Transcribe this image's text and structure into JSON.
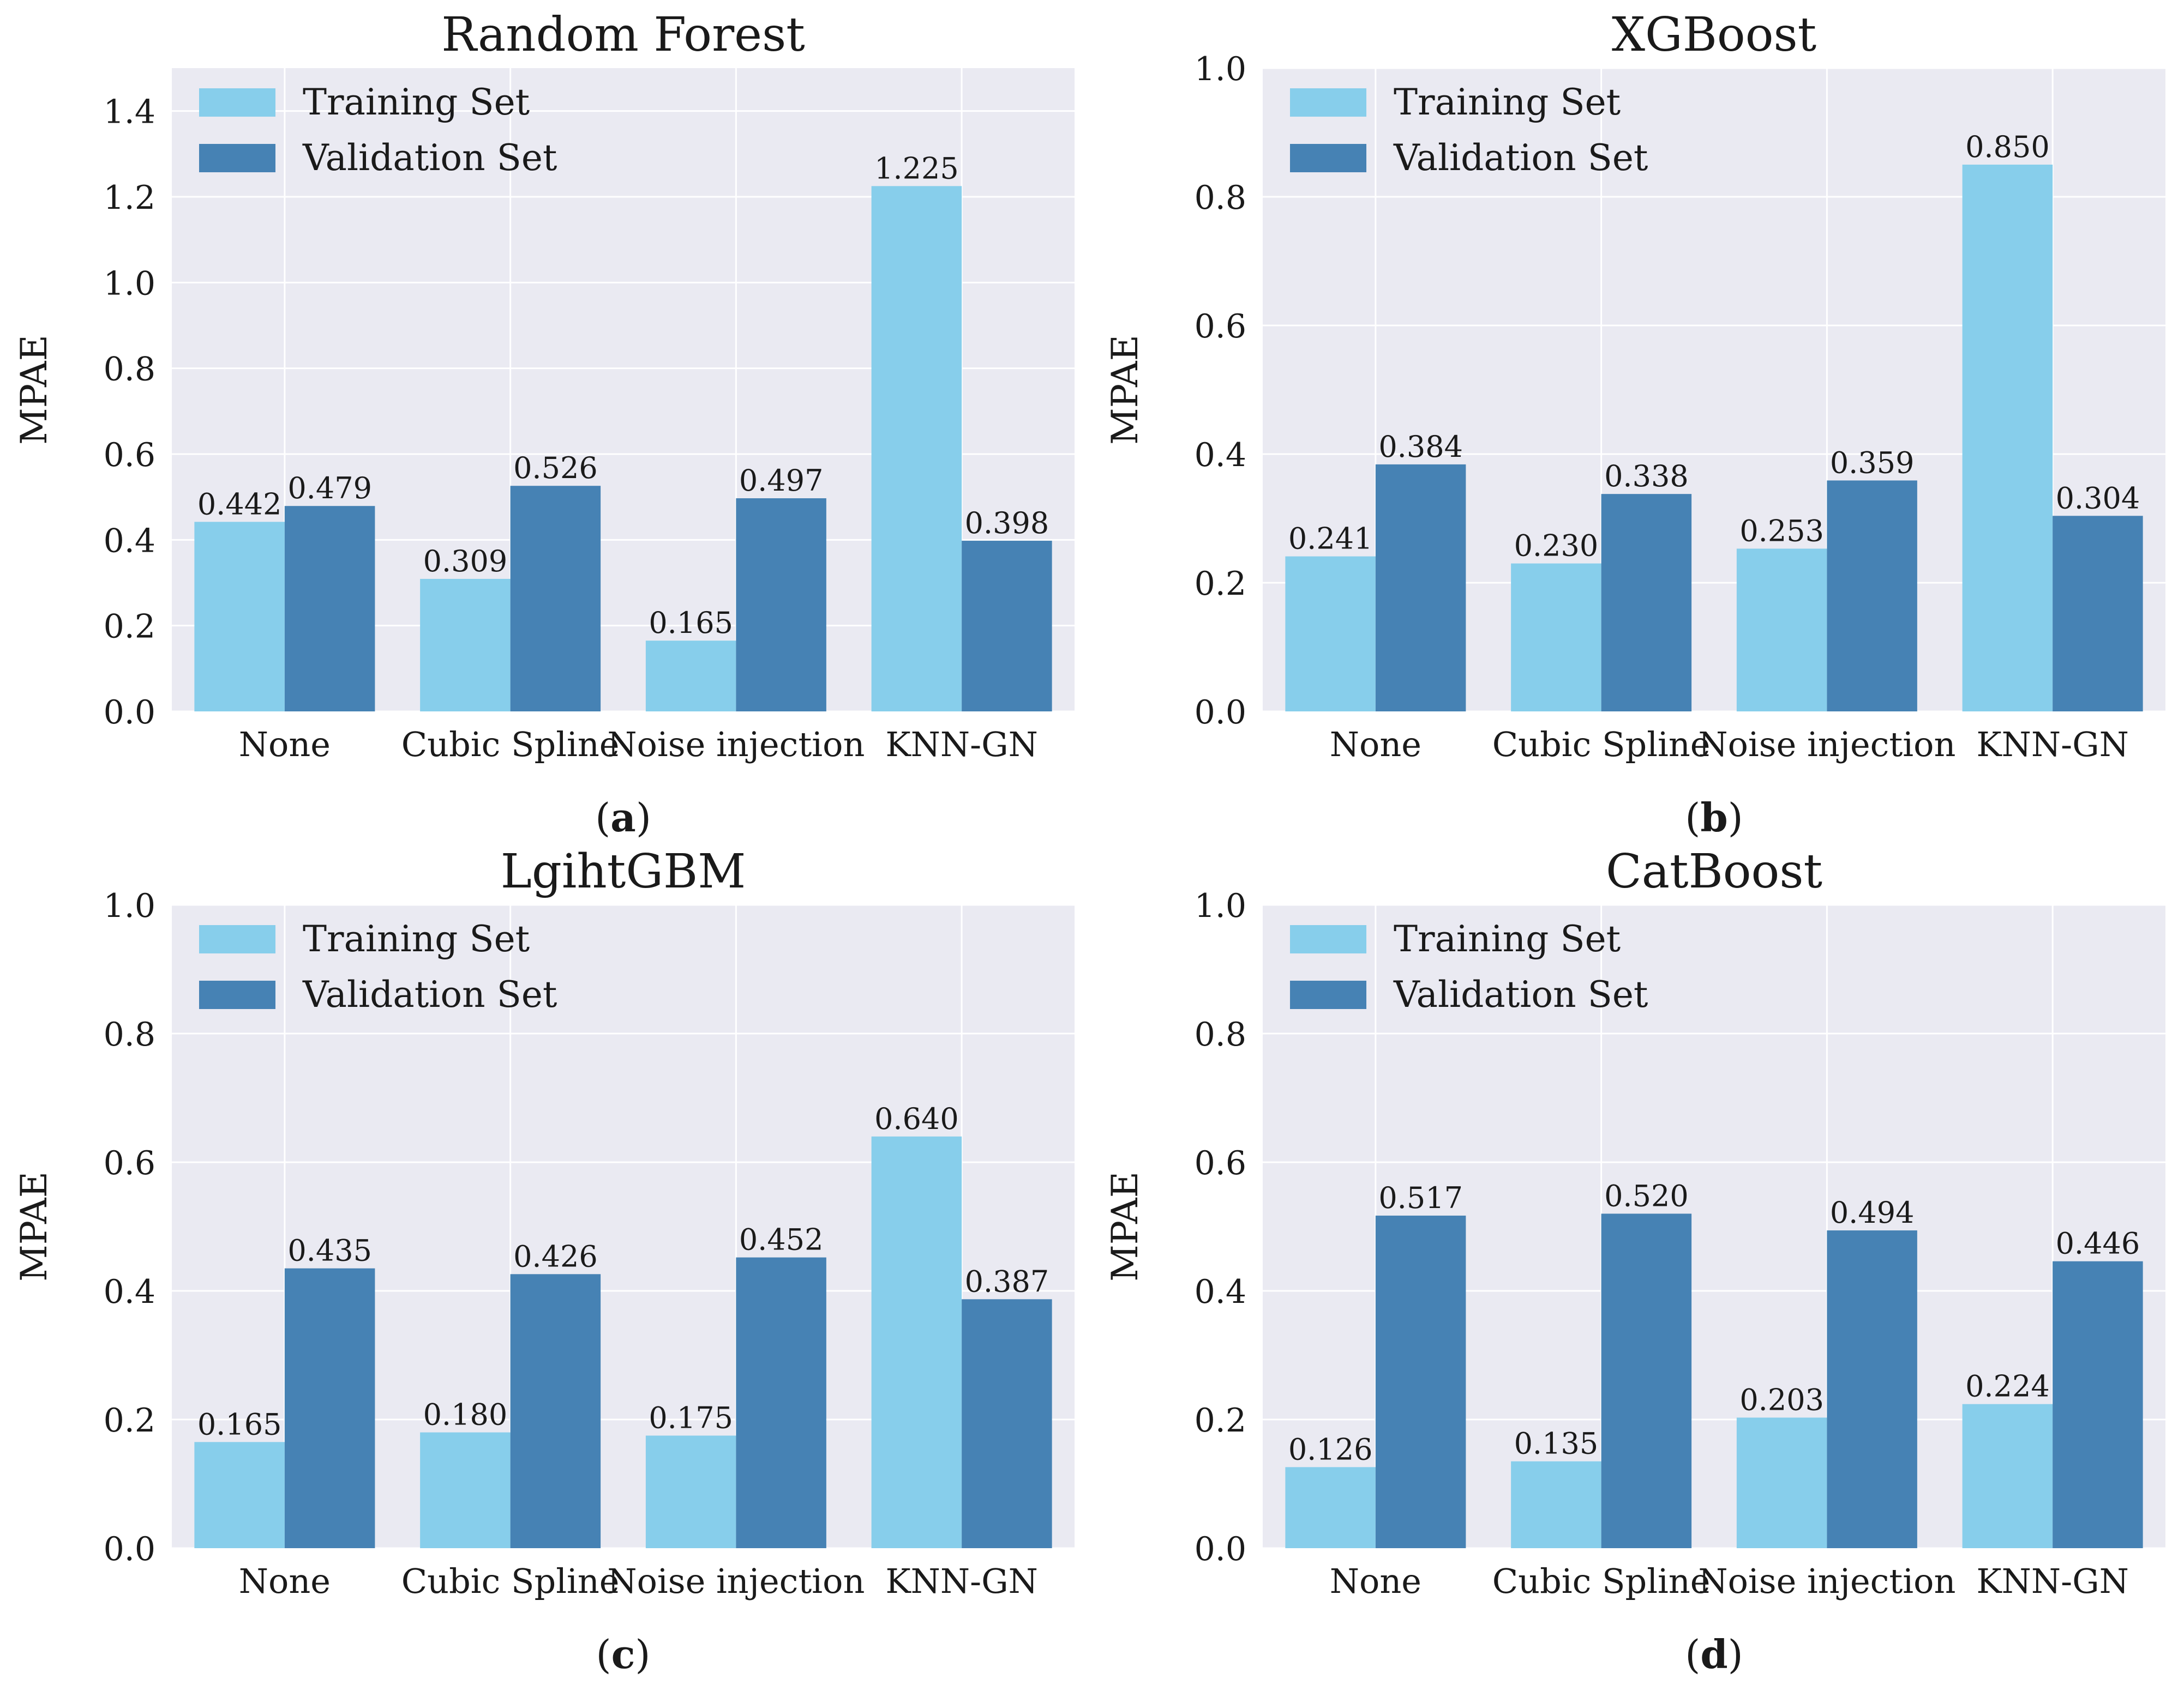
{
  "colors": {
    "training": "#87ceeb",
    "validation": "#4682b4",
    "plot_bg": "#eaeaf2",
    "grid": "#ffffff",
    "text": "#1a1a1a"
  },
  "chart_data": [
    {
      "type": "bar",
      "panel_label": "a",
      "title": "Random Forest",
      "xlabel": "",
      "ylabel": "MPAE",
      "ylim": [
        0,
        1.5
      ],
      "yticks": [
        0.0,
        0.2,
        0.4,
        0.6,
        0.8,
        1.0,
        1.2,
        1.4
      ],
      "ytick_labels": [
        "0.0",
        "0.2",
        "0.4",
        "0.6",
        "0.8",
        "1.0",
        "1.2",
        "1.4"
      ],
      "categories": [
        "None",
        "Cubic Spline",
        "Noise injection",
        "KNN-GN"
      ],
      "series": [
        {
          "name": "Training Set",
          "values": [
            0.442,
            0.309,
            0.165,
            1.225
          ],
          "labels": [
            "0.442",
            "0.309",
            "0.165",
            "1.225"
          ]
        },
        {
          "name": "Validation Set",
          "values": [
            0.479,
            0.526,
            0.497,
            0.398
          ],
          "labels": [
            "0.479",
            "0.526",
            "0.497",
            "0.398"
          ]
        }
      ],
      "grid": true,
      "legend": "top-left"
    },
    {
      "type": "bar",
      "panel_label": "b",
      "title": "XGBoost",
      "xlabel": "",
      "ylabel": "MPAE",
      "ylim": [
        0,
        1.0
      ],
      "yticks": [
        0.0,
        0.2,
        0.4,
        0.6,
        0.8,
        1.0
      ],
      "ytick_labels": [
        "0.0",
        "0.2",
        "0.4",
        "0.6",
        "0.8",
        "1.0"
      ],
      "categories": [
        "None",
        "Cubic Spline",
        "Noise injection",
        "KNN-GN"
      ],
      "series": [
        {
          "name": "Training Set",
          "values": [
            0.241,
            0.23,
            0.253,
            0.85
          ],
          "labels": [
            "0.241",
            "0.230",
            "0.253",
            "0.850"
          ]
        },
        {
          "name": "Validation Set",
          "values": [
            0.384,
            0.338,
            0.359,
            0.304
          ],
          "labels": [
            "0.384",
            "0.338",
            "0.359",
            "0.304"
          ]
        }
      ],
      "grid": true,
      "legend": "top-left"
    },
    {
      "type": "bar",
      "panel_label": "c",
      "title": "LgihtGBM",
      "xlabel": "",
      "ylabel": "MPAE",
      "ylim": [
        0,
        1.0
      ],
      "yticks": [
        0.0,
        0.2,
        0.4,
        0.6,
        0.8,
        1.0
      ],
      "ytick_labels": [
        "0.0",
        "0.2",
        "0.4",
        "0.6",
        "0.8",
        "1.0"
      ],
      "categories": [
        "None",
        "Cubic Spline",
        "Noise injection",
        "KNN-GN"
      ],
      "series": [
        {
          "name": "Training Set",
          "values": [
            0.165,
            0.18,
            0.175,
            0.64
          ],
          "labels": [
            "0.165",
            "0.180",
            "0.175",
            "0.640"
          ]
        },
        {
          "name": "Validation Set",
          "values": [
            0.435,
            0.426,
            0.452,
            0.387
          ],
          "labels": [
            "0.435",
            "0.426",
            "0.452",
            "0.387"
          ]
        }
      ],
      "grid": true,
      "legend": "top-left"
    },
    {
      "type": "bar",
      "panel_label": "d",
      "title": "CatBoost",
      "xlabel": "",
      "ylabel": "MPAE",
      "ylim": [
        0,
        1.0
      ],
      "yticks": [
        0.0,
        0.2,
        0.4,
        0.6,
        0.8,
        1.0
      ],
      "ytick_labels": [
        "0.0",
        "0.2",
        "0.4",
        "0.6",
        "0.8",
        "1.0"
      ],
      "categories": [
        "None",
        "Cubic Spline",
        "Noise injection",
        "KNN-GN"
      ],
      "series": [
        {
          "name": "Training Set",
          "values": [
            0.126,
            0.135,
            0.203,
            0.224
          ],
          "labels": [
            "0.126",
            "0.135",
            "0.203",
            "0.224"
          ]
        },
        {
          "name": "Validation Set",
          "values": [
            0.517,
            0.52,
            0.494,
            0.446
          ],
          "labels": [
            "0.517",
            "0.520",
            "0.494",
            "0.446"
          ]
        }
      ],
      "grid": true,
      "legend": "top-left"
    }
  ]
}
